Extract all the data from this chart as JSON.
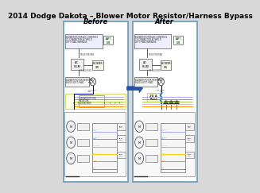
{
  "title": "2014 Dodge Dakota – Blower Motor Resistor/Harness Bypass",
  "before_label": "Before",
  "after_label": "After",
  "bg_color": "#d8d8d8",
  "panel_bg": "#ffffff",
  "border_color": "#6699bb",
  "title_fontsize": 6.5,
  "label_fontsize": 6,
  "arrow_color": "#2255aa",
  "highlight_yellow": "#ffffdd",
  "highlight_border_yellow": "#cccc55"
}
